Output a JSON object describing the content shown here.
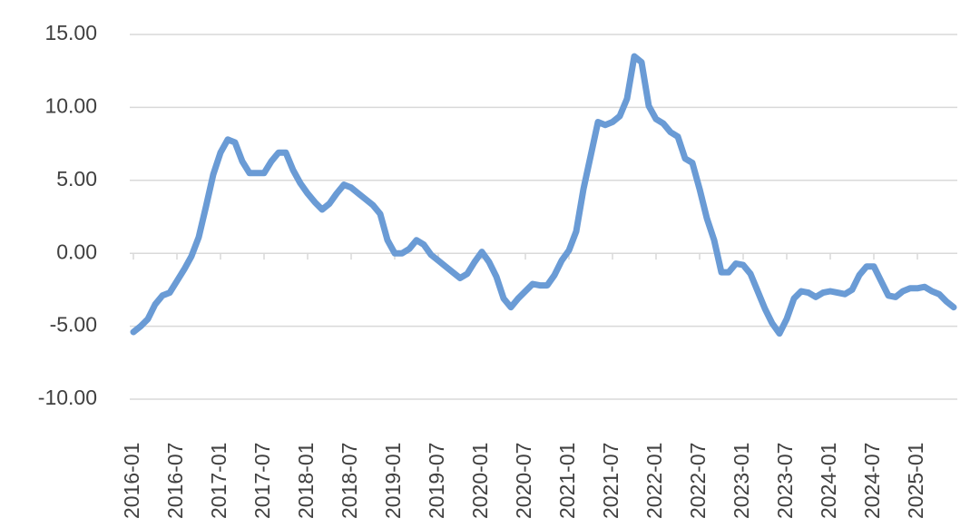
{
  "chart_data": {
    "type": "line",
    "categories": [
      "2016-01",
      null,
      null,
      null,
      null,
      null,
      "2016-07",
      null,
      null,
      null,
      null,
      null,
      "2017-01",
      null,
      null,
      null,
      null,
      null,
      "2017-07",
      null,
      null,
      null,
      null,
      null,
      "2018-01",
      null,
      null,
      null,
      null,
      null,
      "2018-07",
      null,
      null,
      null,
      null,
      null,
      "2019-01",
      null,
      null,
      null,
      null,
      null,
      "2019-07",
      null,
      null,
      null,
      null,
      null,
      "2020-01",
      null,
      null,
      null,
      null,
      null,
      "2020-07",
      null,
      null,
      null,
      null,
      null,
      "2021-01",
      null,
      null,
      null,
      null,
      null,
      "2021-07",
      null,
      null,
      null,
      null,
      null,
      "2022-01",
      null,
      null,
      null,
      null,
      null,
      "2022-07",
      null,
      null,
      null,
      null,
      null,
      "2023-01",
      null,
      null,
      null,
      null,
      null,
      "2023-07",
      null,
      null,
      null,
      null,
      null,
      "2024-01",
      null,
      null,
      null,
      null,
      null,
      "2024-07",
      null,
      null,
      null,
      null,
      null,
      "2025-01",
      null,
      null,
      null,
      null,
      null
    ],
    "values": [
      -5.4,
      -5.0,
      -4.5,
      -3.5,
      -2.9,
      -2.7,
      -1.9,
      -1.1,
      -0.2,
      1.1,
      3.2,
      5.4,
      6.9,
      7.8,
      7.6,
      6.3,
      5.5,
      5.5,
      5.5,
      6.3,
      6.9,
      6.9,
      5.7,
      4.8,
      4.1,
      3.5,
      3.0,
      3.4,
      4.1,
      4.7,
      4.5,
      4.1,
      3.7,
      3.3,
      2.7,
      0.9,
      0.0,
      0.0,
      0.3,
      0.9,
      0.6,
      -0.1,
      -0.5,
      -0.9,
      -1.3,
      -1.7,
      -1.4,
      -0.6,
      0.1,
      -0.6,
      -1.6,
      -3.1,
      -3.7,
      -3.1,
      -2.6,
      -2.1,
      -2.2,
      -2.2,
      -1.5,
      -0.5,
      0.2,
      1.5,
      4.4,
      6.7,
      9.0,
      8.8,
      9.0,
      9.4,
      10.6,
      13.5,
      13.1,
      10.1,
      9.2,
      8.9,
      8.3,
      8.0,
      6.5,
      6.2,
      4.4,
      2.4,
      0.9,
      -1.3,
      -1.3,
      -0.7,
      -0.8,
      -1.4,
      -2.6,
      -3.8,
      -4.8,
      -5.5,
      -4.5,
      -3.1,
      -2.6,
      -2.7,
      -3.0,
      -2.7,
      -2.6,
      -2.7,
      -2.8,
      -2.5,
      -1.5,
      -0.9,
      -0.9,
      -1.9,
      -2.9,
      -3.0,
      -2.6,
      -2.4,
      -2.4,
      -2.3,
      -2.6,
      -2.8,
      -3.3,
      -3.7
    ],
    "color": "#6a9bd5",
    "ylim": [
      -10,
      15
    ],
    "yticks": [
      {
        "value": -10,
        "label": "-10.00"
      },
      {
        "value": -5,
        "label": "-5.00"
      },
      {
        "value": 0,
        "label": "0.00"
      },
      {
        "value": 5,
        "label": "5.00"
      },
      {
        "value": 10,
        "label": "10.00"
      },
      {
        "value": 15,
        "label": "15.00"
      }
    ],
    "grid": true
  }
}
